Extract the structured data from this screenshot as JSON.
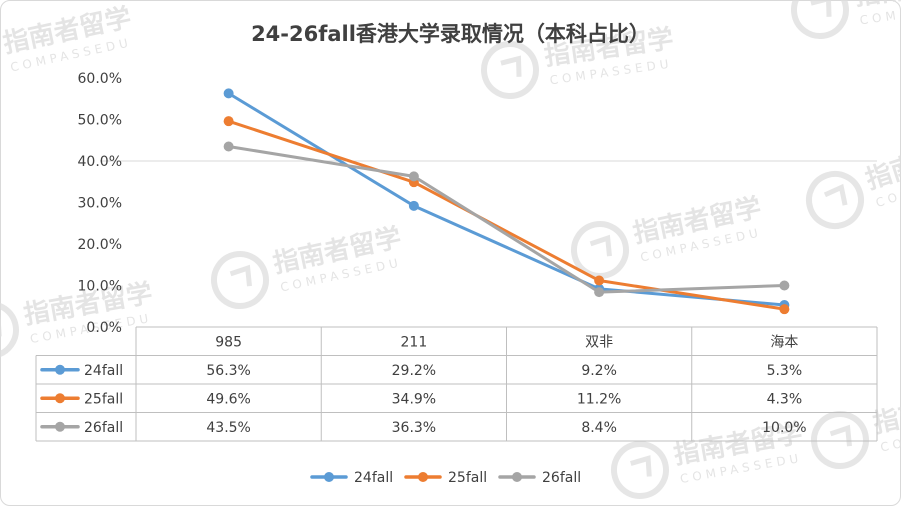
{
  "chart_data": {
    "type": "line",
    "title": "24-26fall香港大学录取情况（本科占比）",
    "categories": [
      "985",
      "211",
      "双非",
      "海本"
    ],
    "series": [
      {
        "name": "24fall",
        "values": [
          56.3,
          29.2,
          9.2,
          5.3
        ],
        "labels": [
          "56.3%",
          "29.2%",
          "9.2%",
          "5.3%"
        ],
        "color": "#5b9bd5"
      },
      {
        "name": "25fall",
        "values": [
          49.6,
          34.9,
          11.2,
          4.3
        ],
        "labels": [
          "49.6%",
          "34.9%",
          "11.2%",
          "4.3%"
        ],
        "color": "#ed7d31"
      },
      {
        "name": "26fall",
        "values": [
          43.5,
          36.3,
          8.4,
          10.0
        ],
        "labels": [
          "43.5%",
          "36.3%",
          "8.4%",
          "10.0%"
        ],
        "color": "#a5a5a5"
      }
    ],
    "yticks": [
      "0.0%",
      "10.0%",
      "20.0%",
      "30.0%",
      "40.0%",
      "50.0%",
      "60.0%"
    ],
    "ylim": [
      0,
      60
    ],
    "grid": true,
    "data_table": true,
    "legend_position": "bottom"
  },
  "watermark": {
    "text": "指南者留学",
    "subtext": "COMPASSEDU",
    "icon": "compass-logo-icon"
  }
}
